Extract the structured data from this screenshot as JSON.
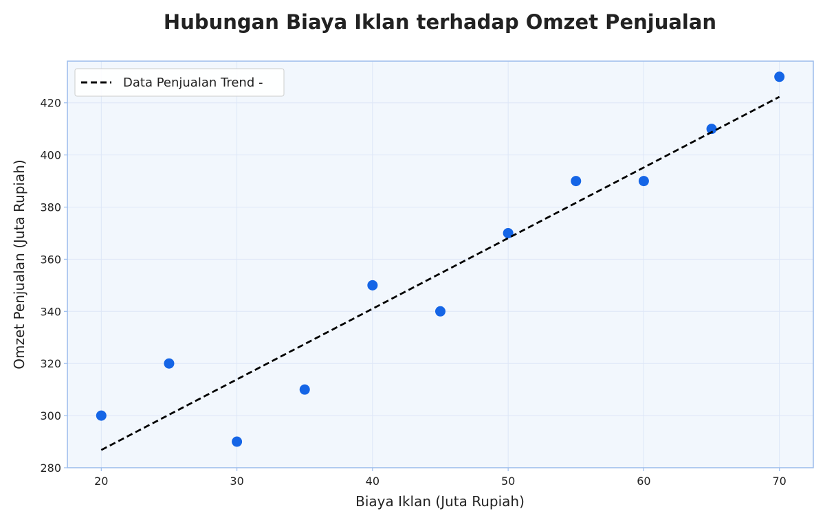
{
  "chart_data": {
    "type": "scatter",
    "title": "Hubungan Biaya Iklan terhadap Omzet Penjualan",
    "xlabel": "Biaya Iklan (Juta Rupiah)",
    "ylabel": "Omzet Penjualan (Juta Rupiah)",
    "xlim": [
      17.5,
      72.5
    ],
    "ylim": [
      280,
      436
    ],
    "xticks": [
      20,
      30,
      40,
      50,
      60,
      70
    ],
    "yticks": [
      280,
      300,
      320,
      340,
      360,
      380,
      400,
      420
    ],
    "grid": true,
    "legend_position": "top-left",
    "series": [
      {
        "name": "Data Penjualan",
        "kind": "scatter",
        "color": "#1565e6",
        "x": [
          20,
          25,
          30,
          35,
          40,
          45,
          50,
          55,
          60,
          65,
          70
        ],
        "y": [
          300,
          320,
          290,
          310,
          350,
          340,
          370,
          390,
          390,
          410,
          430
        ]
      },
      {
        "name": "Trend -",
        "kind": "line",
        "style": "dashed",
        "color": "#000000",
        "x": [
          20,
          70
        ],
        "y": [
          286.8,
          422.3
        ]
      }
    ],
    "legend_label": "Data Penjualan Trend -",
    "colors": {
      "plot_background": "#f2f7fd",
      "plot_border": "#9bbcec",
      "grid": "#dde6f7"
    }
  }
}
